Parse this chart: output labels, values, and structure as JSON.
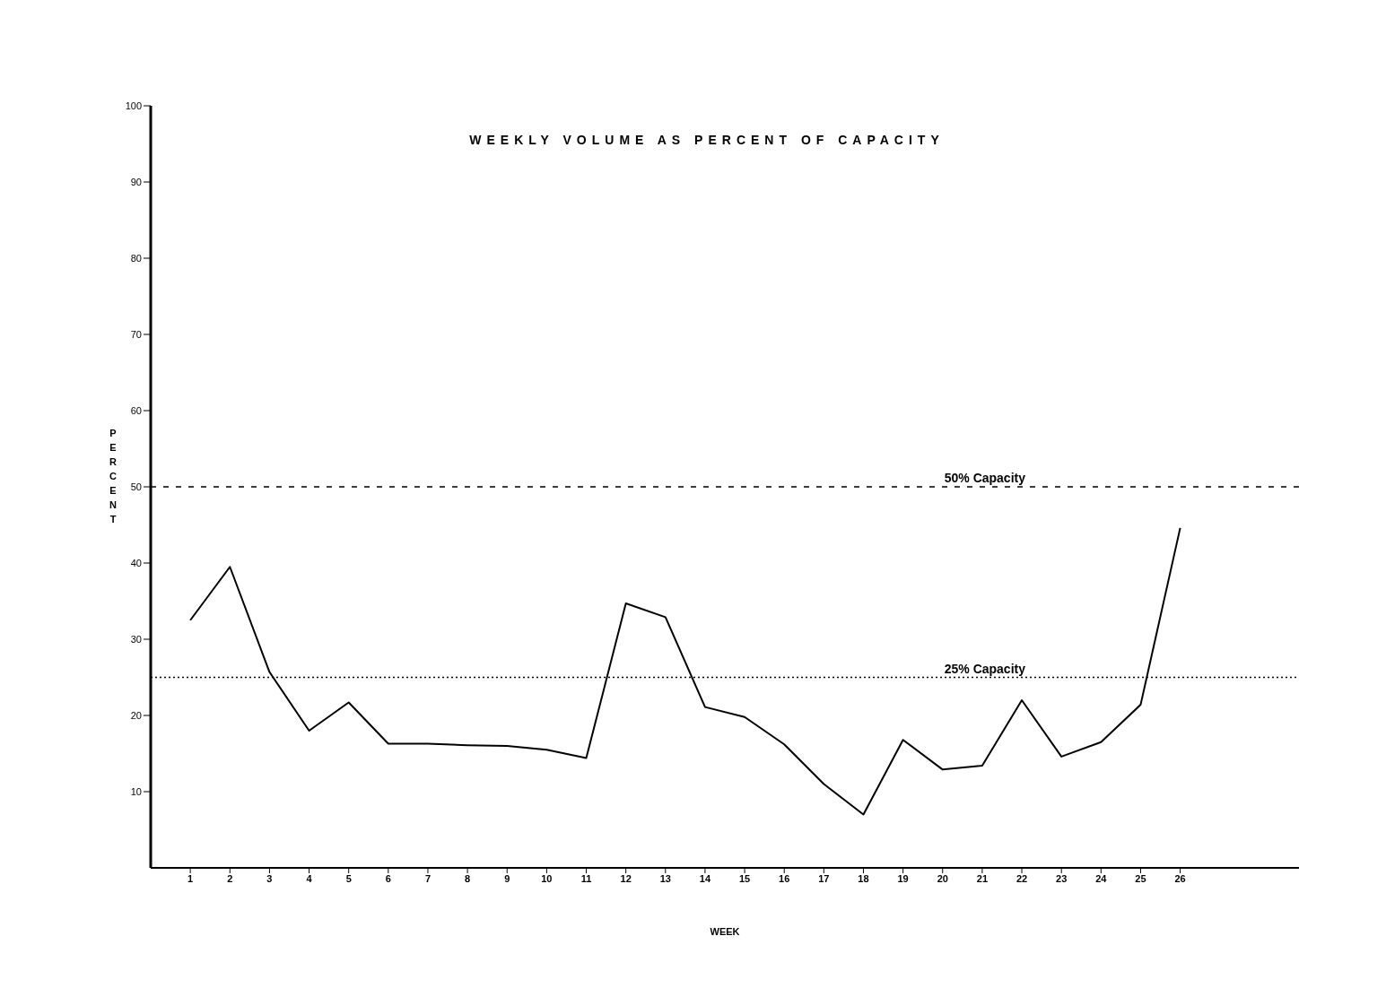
{
  "chart_data": {
    "type": "line",
    "title": "WEEKLY VOLUME AS PERCENT OF CAPACITY",
    "xlabel": "WEEK",
    "ylabel": "PERCENT",
    "x": [
      1,
      2,
      3,
      4,
      5,
      6,
      7,
      8,
      9,
      10,
      11,
      12,
      13,
      14,
      15,
      16,
      17,
      18,
      19,
      20,
      21,
      22,
      23,
      24,
      25,
      26
    ],
    "series": [
      {
        "color": "#000000",
        "values": [
          32.5,
          39.5,
          25.7,
          18,
          21.7,
          16.3,
          16.3,
          16.1,
          16,
          15.5,
          14.4,
          34.7,
          32.9,
          21.1,
          19.8,
          16.2,
          11,
          7,
          16.8,
          12.9,
          13.4,
          22,
          14.6,
          16.5,
          21.4,
          44.6
        ]
      }
    ],
    "xlim": [
      0,
      29
    ],
    "xticks": [
      1,
      2,
      3,
      4,
      5,
      6,
      7,
      8,
      9,
      10,
      11,
      12,
      13,
      14,
      15,
      16,
      17,
      18,
      19,
      20,
      21,
      22,
      23,
      24,
      25,
      26
    ],
    "ylim": [
      0,
      100
    ],
    "yticks": [
      10,
      20,
      30,
      40,
      50,
      60,
      70,
      80,
      90,
      100
    ],
    "ref_lines": [
      {
        "axis": "y",
        "value": 50,
        "label": "50% Capacity",
        "line_style": "dashed",
        "color": "#000000"
      },
      {
        "axis": "y",
        "value": 25,
        "label": "25% Capacity",
        "line_style": "dotted",
        "color": "#000000"
      }
    ],
    "grid": false,
    "legend": false,
    "marker": "none",
    "line_style": "solid"
  }
}
